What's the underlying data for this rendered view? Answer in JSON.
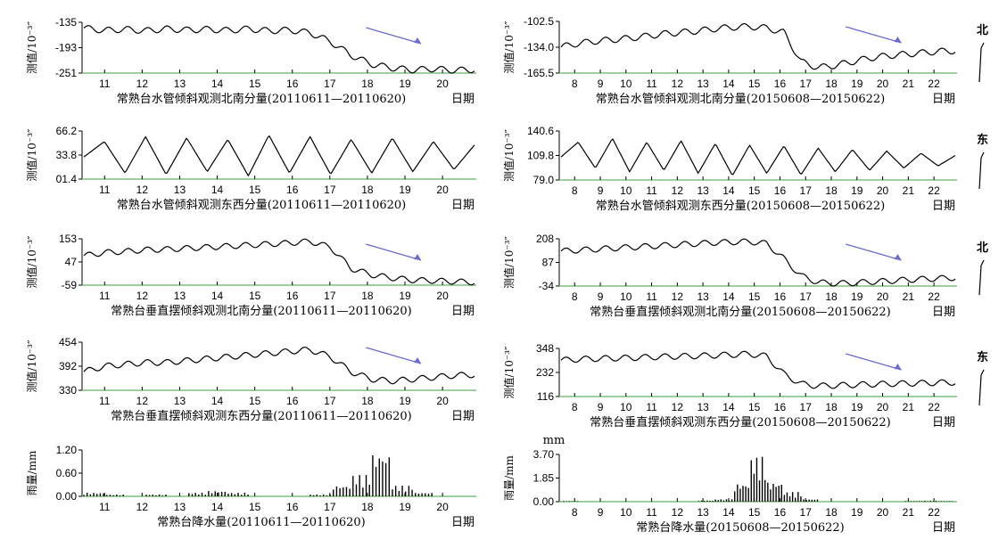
{
  "figure": {
    "xlabel": "日期",
    "ylabel_tilt": "测值/10⁻³″",
    "ylabel_rain": "雨量/mm",
    "trend_color": "#6b6bd6",
    "axis_color": "#7fc07f"
  },
  "chart_data": [
    {
      "type": "line",
      "title": "常熟台水管倾斜观测北南分量(20110611—20110620)",
      "xlabel": "日期",
      "ylabel": "测值/10⁻³″",
      "x_ticks": [
        "11",
        "12",
        "13",
        "14",
        "15",
        "16",
        "17",
        "18",
        "19",
        "20"
      ],
      "ytick_labels": [
        "-135",
        "-193",
        "-251"
      ],
      "ylim": [
        -251,
        -120
      ],
      "series": [
        {
          "values": [
            -135,
            -141,
            -138,
            -142,
            -137,
            -140,
            -138,
            -141,
            -137,
            -142,
            -140,
            -147,
            -170,
            -205,
            -228,
            -238,
            -243,
            -240,
            -244,
            -242
          ]
        }
      ],
      "trend_arrow": true,
      "side_label": ""
    },
    {
      "type": "line",
      "title": "常熟台水管倾斜观测东西分量(20110611—20110620)",
      "xlabel": "日期",
      "ylabel": "测值/10⁻³″",
      "x_ticks": [
        "11",
        "12",
        "13",
        "14",
        "15",
        "16",
        "17",
        "18",
        "19",
        "20"
      ],
      "ytick_labels": [
        "66.2",
        "33.8",
        "01.4"
      ],
      "ylim": [
        1.4,
        70
      ],
      "series": [
        {
          "values": [
            33,
            55,
            10,
            62,
            8,
            60,
            12,
            58,
            6,
            64,
            10,
            62,
            8,
            58,
            10,
            60,
            12,
            55,
            15,
            50
          ]
        }
      ],
      "trend_arrow": false,
      "side_label": ""
    },
    {
      "type": "line",
      "title": "常熟台垂直摆倾斜观测北南分量(20110611—20110620)",
      "xlabel": "日期",
      "ylabel": "测值/10⁻³″",
      "x_ticks": [
        "11",
        "12",
        "13",
        "14",
        "15",
        "16",
        "17",
        "18",
        "19",
        "20"
      ],
      "ytick_labels": [
        "153",
        "47",
        "-59"
      ],
      "ylim": [
        -59,
        160
      ],
      "series": [
        {
          "values": [
            80,
            95,
            100,
            108,
            110,
            115,
            120,
            125,
            130,
            135,
            140,
            148,
            120,
            20,
            -10,
            -25,
            -35,
            -38,
            -42,
            -45
          ]
        }
      ],
      "trend_arrow": true,
      "side_label": ""
    },
    {
      "type": "line",
      "title": "常熟台垂直摆倾斜观测东西分量(20110611—20110620)",
      "xlabel": "日期",
      "ylabel": "测值/10⁻³″",
      "x_ticks": [
        "11",
        "12",
        "13",
        "14",
        "15",
        "16",
        "17",
        "18",
        "19",
        "20"
      ],
      "ytick_labels": [
        "454",
        "392",
        "330"
      ],
      "ylim": [
        330,
        460
      ],
      "series": [
        {
          "values": [
            380,
            395,
            400,
            405,
            405,
            410,
            415,
            420,
            425,
            430,
            435,
            440,
            420,
            380,
            360,
            355,
            360,
            365,
            370,
            372
          ]
        }
      ],
      "trend_arrow": true,
      "side_label": ""
    },
    {
      "type": "bar",
      "title": "常熟台降水量(20110611—20110620)",
      "xlabel": "日期",
      "ylabel": "雨量/mm",
      "x_ticks": [
        "11",
        "12",
        "13",
        "14",
        "15",
        "16",
        "17",
        "18",
        "19",
        "20"
      ],
      "ytick_labels": [
        "1.20",
        "0.60",
        "0.00"
      ],
      "ylim": [
        0,
        1.3
      ],
      "series": [
        {
          "values": [
            0.1,
            0.05,
            0,
            0.05,
            0,
            0.1,
            0.15,
            0.1,
            0,
            0,
            0,
            0.05,
            0.3,
            0.6,
            1.2,
            0.3,
            0.1,
            0,
            0,
            0
          ]
        }
      ],
      "trend_arrow": false,
      "side_label": ""
    },
    {
      "type": "line",
      "title": "常熟台水管倾斜观测北南分量(20150608—20150622)",
      "xlabel": "日期",
      "ylabel": "测值/10⁻³″",
      "x_ticks": [
        "8",
        "9",
        "10",
        "11",
        "12",
        "13",
        "14",
        "15",
        "16",
        "17",
        "18",
        "19",
        "20",
        "21",
        "22"
      ],
      "ytick_labels": [
        "-102.5",
        "-134.0",
        "-165.5"
      ],
      "ylim": [
        -165.5,
        -95
      ],
      "series": [
        {
          "values": [
            -130,
            -125,
            -122,
            -120,
            -118,
            -115,
            -112,
            -110,
            -108,
            -105,
            -103,
            -102,
            -104,
            -110,
            -150,
            -158,
            -155,
            -150,
            -145,
            -142,
            -140,
            -138,
            -136,
            -135
          ]
        }
      ],
      "trend_arrow": true,
      "side_label": "北"
    },
    {
      "type": "line",
      "title": "常熟台水管倾斜观测东西分量(20150608—20150622)",
      "xlabel": "日期",
      "ylabel": "测值/10⁻³″",
      "x_ticks": [
        "8",
        "9",
        "10",
        "11",
        "12",
        "13",
        "14",
        "15",
        "16",
        "17",
        "18",
        "19",
        "20",
        "21",
        "22"
      ],
      "ytick_labels": [
        "140.6",
        "109.8",
        "79.0"
      ],
      "ylim": [
        79,
        145
      ],
      "series": [
        {
          "values": [
            110,
            130,
            95,
            135,
            90,
            130,
            92,
            132,
            88,
            128,
            85,
            126,
            88,
            125,
            86,
            122,
            90,
            120,
            92,
            118,
            95,
            115,
            98,
            112
          ]
        }
      ],
      "trend_arrow": false,
      "side_label": "东"
    },
    {
      "type": "line",
      "title": "常熟台垂直摆倾斜观测北南分量(20150608—20150622)",
      "xlabel": "日期",
      "ylabel": "测值/10⁻³″",
      "x_ticks": [
        "8",
        "9",
        "10",
        "11",
        "12",
        "13",
        "14",
        "15",
        "16",
        "17",
        "18",
        "19",
        "20",
        "21",
        "22"
      ],
      "ytick_labels": [
        "208",
        "87",
        "-34"
      ],
      "ylim": [
        -34,
        215
      ],
      "series": [
        {
          "values": [
            150,
            155,
            160,
            165,
            170,
            175,
            180,
            185,
            190,
            195,
            198,
            200,
            190,
            110,
            20,
            -15,
            -20,
            -18,
            -12,
            -8,
            -2,
            2,
            6,
            10
          ]
        }
      ],
      "trend_arrow": true,
      "side_label": "北"
    },
    {
      "type": "line",
      "title": "常熟台垂直摆倾斜观测东西分量(20150608—20150622)",
      "xlabel": "日期",
      "ylabel": "测值/10⁻³″",
      "x_ticks": [
        "8",
        "9",
        "10",
        "11",
        "12",
        "13",
        "14",
        "15",
        "16",
        "17",
        "18",
        "19",
        "20",
        "21",
        "22"
      ],
      "ytick_labels": [
        "348",
        "232",
        "116"
      ],
      "ylim": [
        116,
        360
      ],
      "series": [
        {
          "values": [
            300,
            305,
            308,
            310,
            312,
            315,
            318,
            320,
            322,
            325,
            328,
            332,
            320,
            230,
            180,
            170,
            172,
            175,
            178,
            180,
            182,
            184,
            186,
            188
          ]
        }
      ],
      "trend_arrow": true,
      "side_label": "东"
    },
    {
      "type": "bar",
      "title": "常熟台降水量(20150608—20150622)",
      "xlabel": "日期",
      "ylabel": "雨量/mm",
      "unit_label": "mm",
      "x_ticks": [
        "8",
        "9",
        "10",
        "11",
        "12",
        "13",
        "14",
        "15",
        "16",
        "17",
        "18",
        "19",
        "20",
        "21",
        "22"
      ],
      "ytick_labels": [
        "3.70",
        "1.85",
        "0.00"
      ],
      "ylim": [
        0,
        3.9
      ],
      "series": [
        {
          "values": [
            0.05,
            0,
            0,
            0,
            0,
            0,
            0,
            0,
            0.1,
            0.2,
            1.5,
            3.7,
            1.6,
            0.8,
            0.2,
            0,
            0,
            0,
            0,
            0,
            0.05,
            0.08,
            0.05,
            0
          ]
        }
      ],
      "trend_arrow": false,
      "side_label": ""
    }
  ]
}
